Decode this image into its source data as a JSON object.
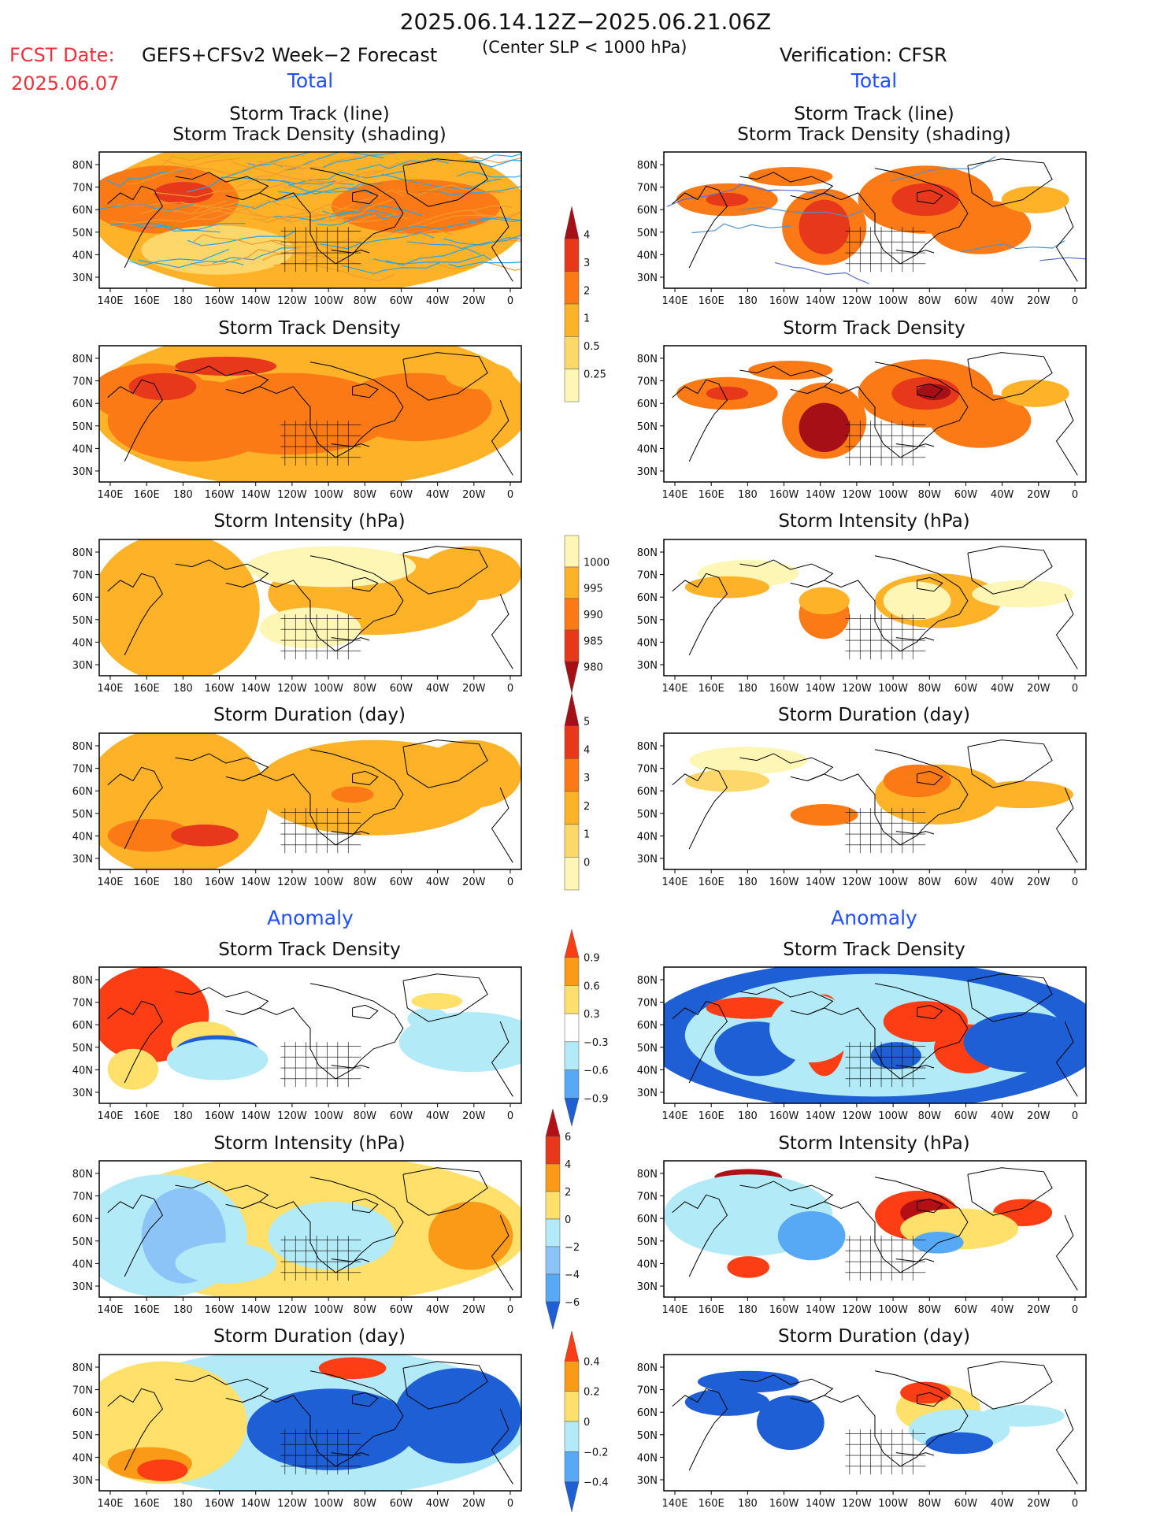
{
  "header": {
    "title": "2025.06.14.12Z−2025.06.21.06Z",
    "fcst_label": "FCST Date:",
    "fcst_date": "2025.06.07",
    "model": "GEFS+CFSv2 Week−2 Forecast",
    "center_slp": "(Center SLP < 1000 hPa)",
    "verification": "Verification: CFSR"
  },
  "sections": {
    "total_label": "Total",
    "anomaly_label": "Anomaly"
  },
  "panel_titles": {
    "track_line": "Storm Track (line)",
    "track_density_shading": "Storm Track Density (shading)",
    "track_density": "Storm Track Density",
    "intensity": "Storm Intensity (hPa)",
    "duration": "Storm Duration (day)"
  },
  "axes": {
    "lon_ticks": [
      "140E",
      "160E",
      "180",
      "160W",
      "140W",
      "120W",
      "100W",
      "80W",
      "60W",
      "40W",
      "20W",
      "0"
    ],
    "lat_ticks": [
      "80N",
      "70N",
      "60N",
      "50N",
      "40N",
      "30N"
    ]
  },
  "colorbars": [
    {
      "name": "track-density",
      "labels": [
        "4",
        "3",
        "2",
        "1",
        "0.5",
        "0.25"
      ],
      "colors": [
        "#a50f15",
        "#e8381c",
        "#fb7a16",
        "#fdb227",
        "#fed76a",
        "#fef6b5"
      ]
    },
    {
      "name": "intensity",
      "labels": [
        "1000",
        "995",
        "990",
        "985",
        "980"
      ],
      "colors": [
        "#fef6b5",
        "#fdb227",
        "#fb7a16",
        "#e8381c",
        "#a50f15"
      ]
    },
    {
      "name": "duration",
      "labels": [
        "5",
        "4",
        "3",
        "2",
        "1",
        "0"
      ],
      "colors": [
        "#a50f15",
        "#e8381c",
        "#fb7a16",
        "#fdb227",
        "#fed76a",
        "#fef6b5"
      ]
    },
    {
      "name": "density-anomaly",
      "labels": [
        "0.9",
        "0.6",
        "0.3",
        "−0.3",
        "−0.6",
        "−0.9"
      ],
      "colors": [
        "#fd3d14",
        "#fb9a16",
        "#fee06a",
        "#ffffff",
        "#b2ebf7",
        "#57a9f5",
        "#1e5fd6"
      ]
    },
    {
      "name": "intensity-anomaly",
      "labels": [
        "6",
        "4",
        "2",
        "0",
        "−2",
        "−4",
        "−6"
      ],
      "colors": [
        "#b30f15",
        "#e8381c",
        "#fb9a16",
        "#fee06a",
        "#b2ebf7",
        "#8cc4f7",
        "#57a9f5",
        "#1e5fd6"
      ]
    },
    {
      "name": "duration-anomaly",
      "labels": [
        "0.4",
        "0.2",
        "0",
        "−0.2",
        "−0.4"
      ],
      "colors": [
        "#fd3d14",
        "#fb9a16",
        "#fee06a",
        "#b2ebf7",
        "#57a9f5",
        "#1e5fd6"
      ]
    }
  ],
  "colors": {
    "forecast_track_line": "#f29a2e",
    "forecast_track_line2": "#22a6ee",
    "land_outline": "#000000"
  }
}
